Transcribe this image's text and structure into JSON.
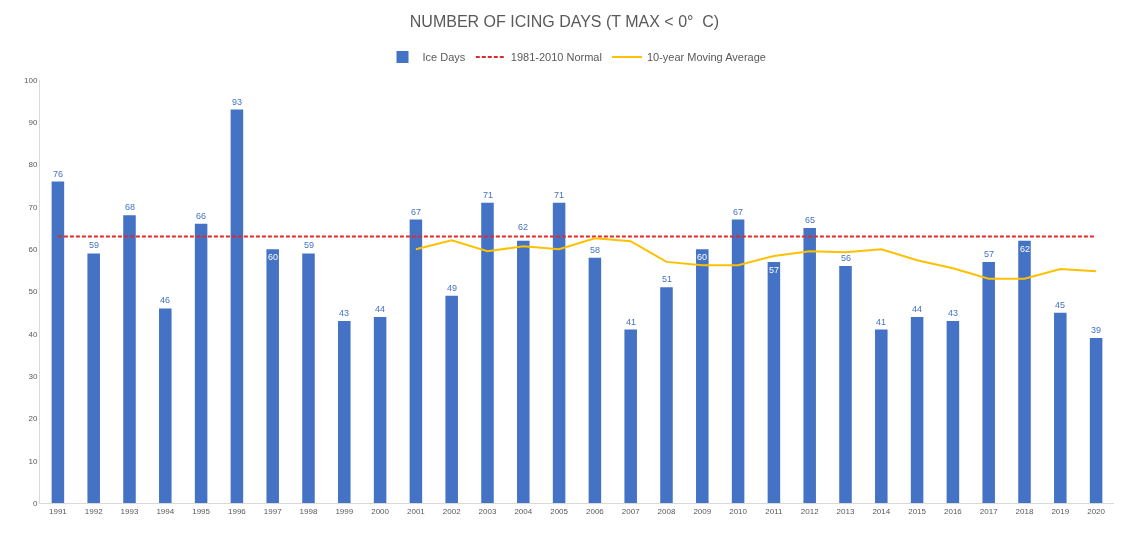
{
  "chart_data": {
    "type": "bar",
    "title": "NUMBER OF ICING DAYS (T MAX < 0°  C)",
    "categories": [
      "1991",
      "1992",
      "1993",
      "1994",
      "1995",
      "1996",
      "1997",
      "1998",
      "1999",
      "2000",
      "2001",
      "2002",
      "2003",
      "2004",
      "2005",
      "2006",
      "2007",
      "2008",
      "2009",
      "2010",
      "2011",
      "2012",
      "2013",
      "2014",
      "2015",
      "2016",
      "2017",
      "2018",
      "2019",
      "2020"
    ],
    "series": [
      {
        "name": "Ice Days",
        "color": "#4472c4",
        "data_labels": true,
        "values": [
          76,
          59,
          68,
          46,
          66,
          93,
          60,
          59,
          43,
          44,
          67,
          49,
          71,
          62,
          71,
          58,
          41,
          51,
          60,
          67,
          57,
          65,
          56,
          41,
          44,
          43,
          57,
          62,
          45,
          39
        ]
      },
      {
        "name": "1981-2010 Normal",
        "type": "line",
        "color": "#e02b2b",
        "line_style": "dashed",
        "values": [
          63,
          63,
          63,
          63,
          63,
          63,
          63,
          63,
          63,
          63,
          63,
          63,
          63,
          63,
          63,
          63,
          63,
          63,
          63,
          63,
          63,
          63,
          63,
          63,
          63,
          63,
          63,
          63,
          63,
          63
        ]
      },
      {
        "name": "10-year Moving Average",
        "type": "line",
        "color": "#ffc000",
        "line_style": "solid",
        "values": [
          null,
          null,
          null,
          null,
          null,
          null,
          null,
          null,
          null,
          null,
          60,
          62.1,
          59.5,
          60.7,
          60,
          62.6,
          61.9,
          57,
          56.2,
          56.2,
          58.4,
          59.5,
          59.3,
          60,
          57.4,
          55.5,
          53,
          53,
          55.3,
          54.8
        ]
      }
    ],
    "ylim": [
      0,
      100
    ],
    "yticks": [
      0,
      10,
      20,
      30,
      40,
      50,
      60,
      70,
      80,
      90,
      100
    ],
    "grid": false,
    "legend": "top",
    "marker": "none"
  }
}
